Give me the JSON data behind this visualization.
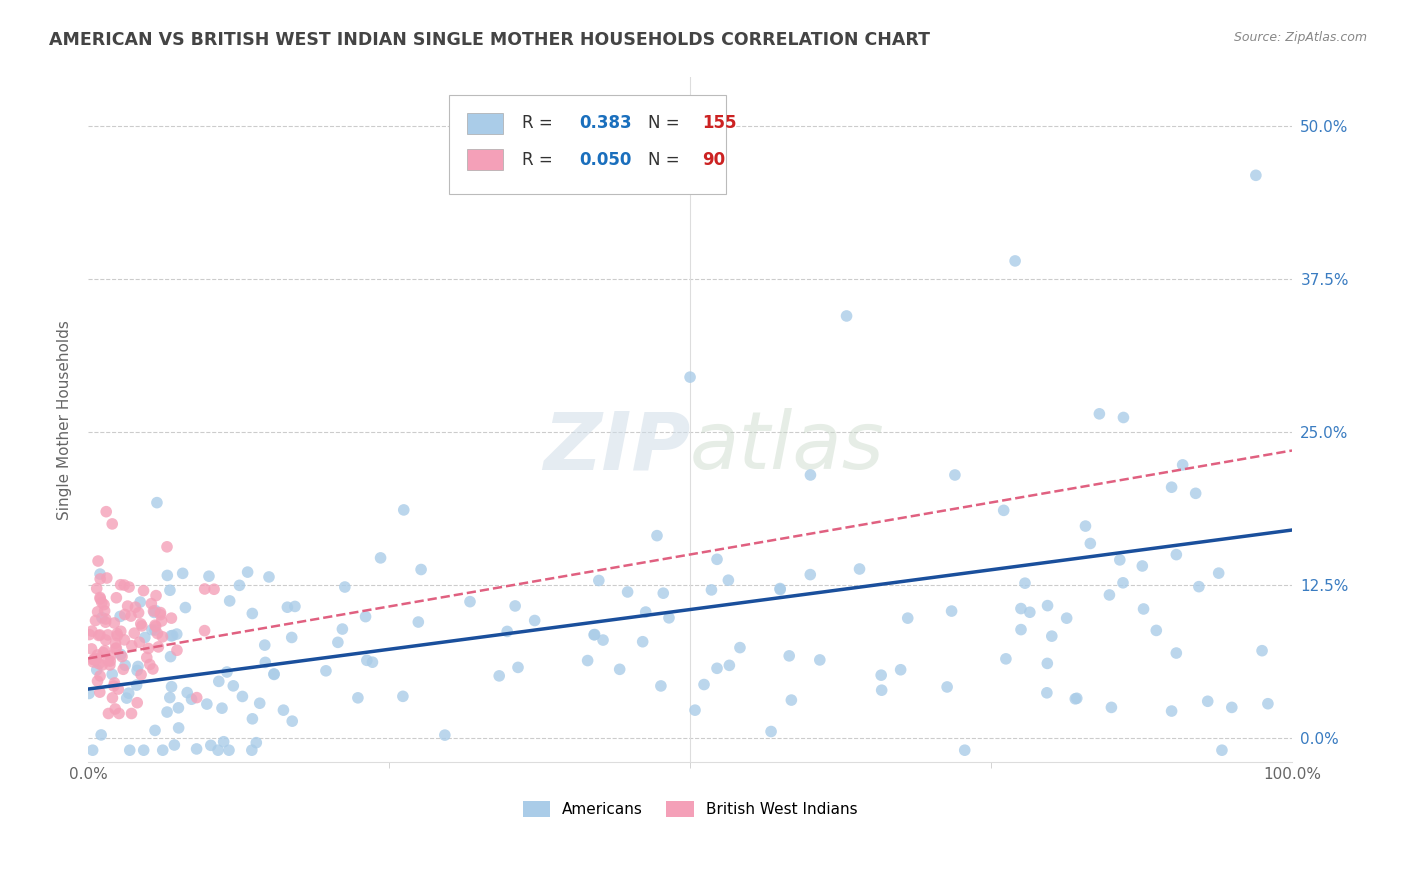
{
  "title": "AMERICAN VS BRITISH WEST INDIAN SINGLE MOTHER HOUSEHOLDS CORRELATION CHART",
  "source": "Source: ZipAtlas.com",
  "ylabel": "Single Mother Households",
  "legend_label_americans": "Americans",
  "legend_label_bwi": "British West Indians",
  "r_americans": 0.383,
  "n_americans": 155,
  "r_bwi": 0.05,
  "n_bwi": 90,
  "color_americans": "#aacce8",
  "color_bwi": "#f4a0b8",
  "color_line_americans": "#1a4f9c",
  "color_line_bwi": "#e06080",
  "background_color": "#ffffff",
  "grid_color": "#cccccc",
  "title_color": "#444444",
  "source_color": "#888888",
  "legend_r_color": "#1a6fbd",
  "legend_n_color": "#cc2222",
  "right_tick_color": "#3a7cc1",
  "xlim": [
    0.0,
    1.0
  ],
  "ylim": [
    -0.02,
    0.54
  ],
  "yticks": [
    0.0,
    0.125,
    0.25,
    0.375,
    0.5
  ],
  "ytick_labels": [
    "0.0%",
    "12.5%",
    "25.0%",
    "37.5%",
    "50.0%"
  ],
  "xtick_major": [
    0.0,
    1.0
  ],
  "xtick_minor": [
    0.25,
    0.5,
    0.75
  ],
  "xtick_major_labels": [
    "0.0%",
    "100.0%"
  ],
  "figsize": [
    14.06,
    8.92
  ],
  "dpi": 100
}
